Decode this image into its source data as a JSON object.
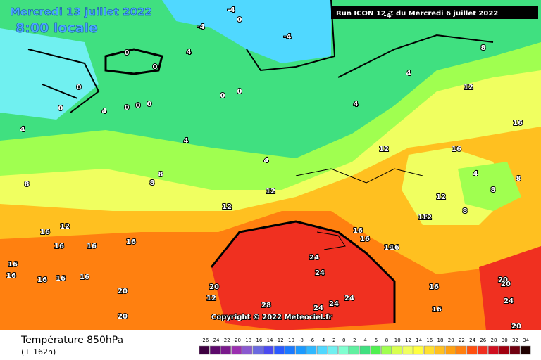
{
  "header": {
    "date": "Mercredi 13 juillet 2022",
    "time": "8:00 locale",
    "run": "Run ICON 12 Z du Mercredi 6 juillet 2022"
  },
  "map": {
    "copyright": "Copyright © 2022 Meteociel.fr",
    "contour_labels": [
      -4,
      -4,
      -4,
      0,
      -4,
      0,
      0,
      0,
      4,
      0,
      0,
      0,
      0,
      0,
      0,
      4,
      4,
      4,
      4,
      4,
      8,
      4,
      12,
      16,
      16,
      8,
      8,
      8,
      12,
      12,
      16,
      16,
      16,
      12,
      16,
      16,
      16,
      16,
      12,
      16,
      16,
      20,
      20,
      24,
      24,
      28,
      24,
      24,
      24,
      20,
      16,
      16,
      16,
      16,
      20,
      24,
      20,
      20,
      12,
      12,
      12,
      12,
      8,
      4,
      8,
      8,
      16,
      16
    ]
  },
  "footer": {
    "title": "Température 850hPa",
    "lead": "(+ 162h)"
  },
  "legend": {
    "values": [
      -26,
      -24,
      -22,
      -20,
      -18,
      -16,
      -14,
      -12,
      -10,
      -8,
      -6,
      -4,
      -2,
      0,
      2,
      4,
      6,
      8,
      10,
      12,
      14,
      16,
      18,
      20,
      22,
      24,
      26,
      28,
      30,
      32,
      34
    ],
    "colors": [
      "#3d0040",
      "#5c0a6b",
      "#7a1a8c",
      "#9b30b0",
      "#8a5ad0",
      "#6a6ae0",
      "#4a4af0",
      "#2a5aff",
      "#1a7aff",
      "#1a9aff",
      "#30b8ff",
      "#50d8ff",
      "#70f0f0",
      "#80ffd0",
      "#60f0a0",
      "#40e080",
      "#50f050",
      "#a0ff50",
      "#d8ff50",
      "#f0ff60",
      "#ffff40",
      "#ffe030",
      "#ffc020",
      "#ffa010",
      "#ff8010",
      "#ff5010",
      "#f03020",
      "#d01020",
      "#a00010",
      "#700010",
      "#200000"
    ]
  }
}
